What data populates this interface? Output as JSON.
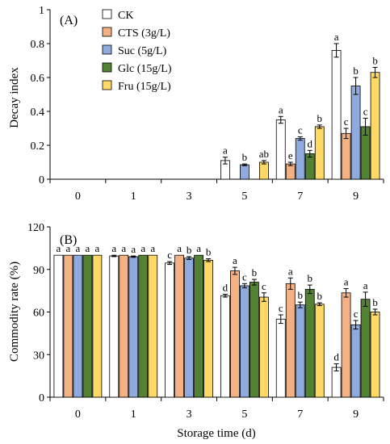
{
  "chart_data": [
    {
      "type": "bar",
      "panel_label": "(A)",
      "ylabel": "Decay index",
      "xlabel": "",
      "ylim": [
        0,
        1.0
      ],
      "yticks": [
        "0",
        "0.2",
        "0.4",
        "0.6",
        "0.8",
        "1"
      ],
      "yticks_values": [
        0,
        0.2,
        0.4,
        0.6,
        0.8,
        1.0
      ],
      "categories": [
        "0",
        "1",
        "3",
        "5",
        "7",
        "9"
      ],
      "legend_position": "top-left",
      "grid": false,
      "series": [
        {
          "name": "CK",
          "color": "#ffffff",
          "values": [
            0,
            0,
            0,
            0.11,
            0.35,
            0.76
          ],
          "errors": [
            0,
            0,
            0,
            0.02,
            0.02,
            0.04
          ],
          "labels": [
            "",
            "",
            "",
            "a",
            "a",
            "a"
          ]
        },
        {
          "name": "CTS (3g/L)",
          "color": "#f4b183",
          "values": [
            0,
            0,
            0,
            0,
            0.09,
            0.27
          ],
          "errors": [
            0,
            0,
            0,
            0,
            0.01,
            0.03
          ],
          "labels": [
            "",
            "",
            "",
            "",
            "e",
            "c"
          ]
        },
        {
          "name": "Suc (5g/L)",
          "color": "#8faadc",
          "values": [
            0,
            0,
            0,
            0.085,
            0.24,
            0.55
          ],
          "errors": [
            0,
            0,
            0,
            0.005,
            0.01,
            0.05
          ],
          "labels": [
            "",
            "",
            "",
            "b",
            "c",
            "b"
          ]
        },
        {
          "name": "Glc (15g/L)",
          "color": "#548235",
          "values": [
            0,
            0,
            0,
            0,
            0.15,
            0.31
          ],
          "errors": [
            0,
            0,
            0,
            0,
            0.02,
            0.05
          ],
          "labels": [
            "",
            "",
            "",
            "",
            "d",
            "c"
          ]
        },
        {
          "name": "Fru (15g/L)",
          "color": "#ffd966",
          "values": [
            0,
            0,
            0,
            0.1,
            0.31,
            0.63
          ],
          "errors": [
            0,
            0,
            0,
            0.01,
            0.01,
            0.03
          ],
          "labels": [
            "",
            "",
            "",
            "ab",
            "b",
            "b"
          ]
        }
      ]
    },
    {
      "type": "bar",
      "panel_label": "(B)",
      "ylabel": "Commodity rate (%)",
      "xlabel": "Storage time (d)",
      "ylim": [
        0,
        120
      ],
      "yticks": [
        "0",
        "30",
        "60",
        "90",
        "120"
      ],
      "yticks_values": [
        0,
        30,
        60,
        90,
        120
      ],
      "categories": [
        "0",
        "1",
        "3",
        "5",
        "7",
        "9"
      ],
      "grid": false,
      "series": [
        {
          "name": "CK",
          "color": "#ffffff",
          "values": [
            100,
            99.5,
            94.5,
            71.5,
            55,
            21
          ],
          "errors": [
            0,
            0.5,
            1,
            1,
            3,
            2.5
          ],
          "labels": [
            "a",
            "a",
            "c",
            "d",
            "c",
            "d"
          ]
        },
        {
          "name": "CTS (3g/L)",
          "color": "#f4b183",
          "values": [
            100,
            100,
            100,
            89,
            80,
            73.5
          ],
          "errors": [
            0,
            0,
            0,
            2.5,
            4,
            3
          ],
          "labels": [
            "a",
            "a",
            "a",
            "a",
            "a",
            "a"
          ]
        },
        {
          "name": "Suc (5g/L)",
          "color": "#8faadc",
          "values": [
            100,
            99,
            98,
            78.5,
            65,
            51
          ],
          "errors": [
            0,
            0.5,
            1,
            1.5,
            2,
            3
          ],
          "labels": [
            "a",
            "a",
            "b",
            "c",
            "b",
            "c"
          ]
        },
        {
          "name": "Glc (15g/L)",
          "color": "#548235",
          "values": [
            100,
            100,
            100,
            81,
            76,
            69
          ],
          "errors": [
            0,
            0,
            0,
            2,
            3,
            5
          ],
          "labels": [
            "a",
            "a",
            "a",
            "b",
            "b",
            "a"
          ]
        },
        {
          "name": "Fru (15g/L)",
          "color": "#ffd966",
          "values": [
            100,
            100,
            96.5,
            70.5,
            65.5,
            60
          ],
          "errors": [
            0,
            0,
            1,
            3,
            1,
            2
          ],
          "labels": [
            "a",
            "a",
            "b",
            "c",
            "b",
            "b"
          ]
        }
      ]
    }
  ]
}
